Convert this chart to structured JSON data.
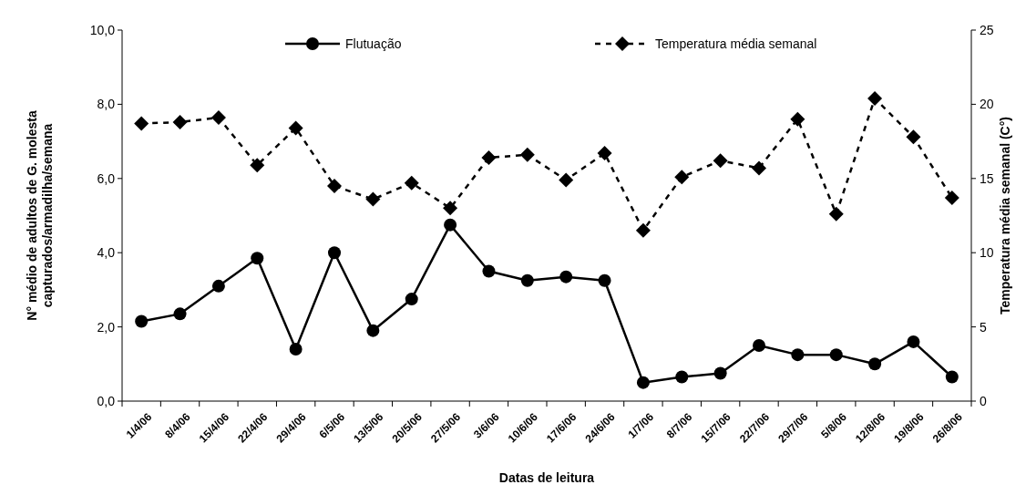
{
  "chart_data": {
    "type": "line",
    "xlabel": "Datas de leitura",
    "ylabel": "N° médio de adultos de G. molesta\ncapturados/armadilha/semana",
    "y2label": "Temperatura média semanal (C°)",
    "categories": [
      "1/4/06",
      "8/4/06",
      "15/4/06",
      "22/4/06",
      "29/4/06",
      "6/5/06",
      "13/5/06",
      "20/5/06",
      "27/5/06",
      "3/6/06",
      "10/6/06",
      "17/6/06",
      "24/6/06",
      "1/7/06",
      "8/7/06",
      "15/7/06",
      "22/7/06",
      "29/7/06",
      "5/8/06",
      "12/8/06",
      "19/8/06",
      "26/8/06"
    ],
    "series": [
      {
        "name": "Flutuação",
        "color": "#000000",
        "marker": "circle",
        "line_style": "solid",
        "values": [
          2.15,
          2.35,
          3.1,
          3.85,
          1.4,
          4.0,
          1.9,
          2.75,
          4.75,
          3.5,
          3.25,
          3.35,
          3.25,
          0.5,
          0.65,
          0.75,
          1.5,
          1.25,
          1.25,
          1.0,
          1.6,
          0.65
        ]
      },
      {
        "name": "Temperatura média semanal",
        "color": "#000000",
        "marker": "diamond",
        "line_style": "dashed",
        "axis": "y2",
        "values": [
          18.7,
          18.8,
          19.1,
          15.9,
          18.4,
          14.5,
          13.6,
          14.7,
          13.0,
          16.4,
          16.6,
          14.9,
          16.7,
          11.5,
          15.1,
          16.2,
          15.7,
          19.0,
          12.6,
          20.4,
          17.8,
          13.7
        ]
      }
    ],
    "ylim": [
      0,
      10
    ],
    "yticks": [
      {
        "value": 0,
        "label": "0,0"
      },
      {
        "value": 2,
        "label": "2,0"
      },
      {
        "value": 4,
        "label": "4,0"
      },
      {
        "value": 6,
        "label": "6,0"
      },
      {
        "value": 8,
        "label": "8,0"
      },
      {
        "value": 10,
        "label": "10,0"
      }
    ],
    "y2lim": [
      0,
      25
    ],
    "y2ticks": [
      0,
      5,
      10,
      15,
      20,
      25
    ],
    "legend": "top",
    "grid": false
  }
}
